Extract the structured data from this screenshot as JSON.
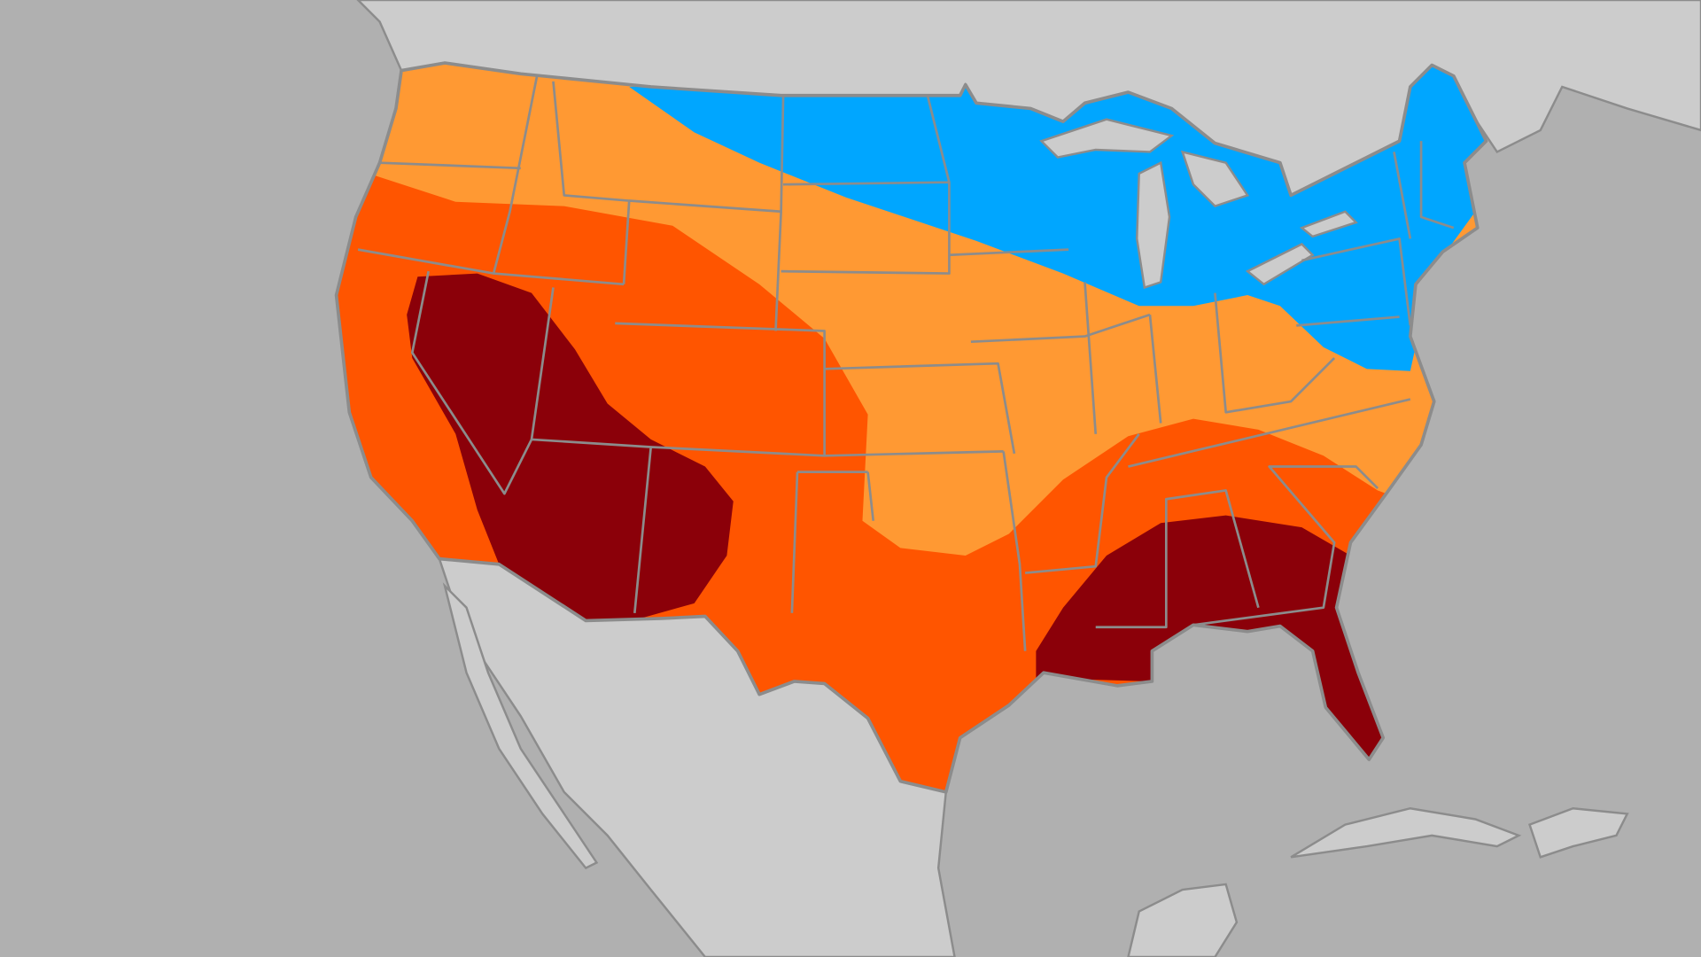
{
  "map": {
    "colors": {
      "ocean": "#b0b0b0",
      "land": "#cccccc",
      "border": "#8c8c8c",
      "zone_blue": "#00a6ff",
      "zone_light_orange": "#ff9933",
      "zone_orange": "#ff5500",
      "zone_dark_red": "#8b0009"
    }
  }
}
